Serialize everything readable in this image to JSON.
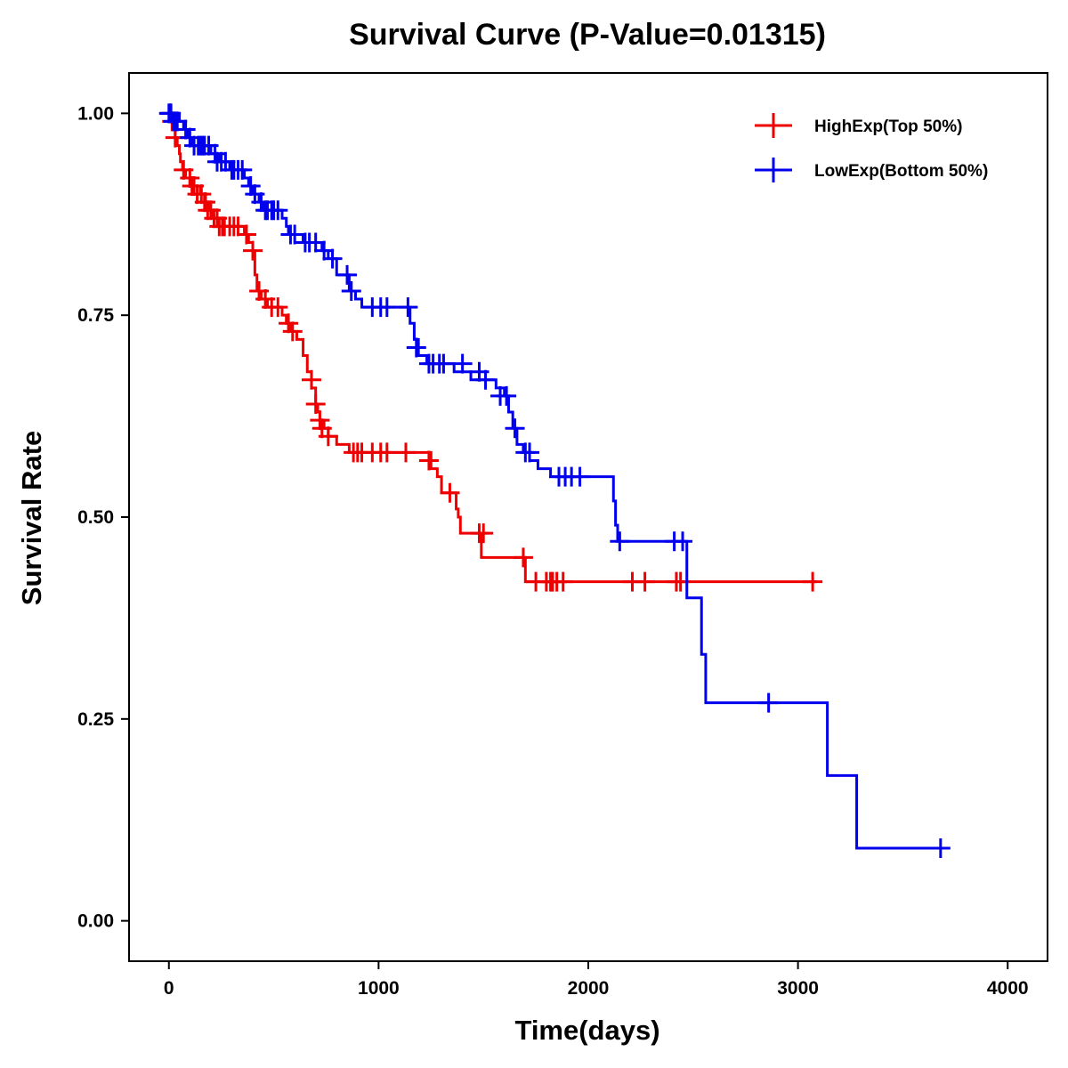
{
  "chart_data": {
    "type": "line",
    "title": "Survival Curve (P-Value=0.01315)",
    "xlabel": "Time(days)",
    "ylabel": "Survival Rate",
    "xlim": [
      -190,
      4190
    ],
    "ylim": [
      -0.05,
      1.05
    ],
    "xticks": [
      0,
      1000,
      2000,
      3000,
      4000
    ],
    "xtick_labels": [
      "0",
      "1000",
      "2000",
      "3000",
      "4000"
    ],
    "yticks": [
      0,
      0.25,
      0.5,
      0.75,
      1.0
    ],
    "ytick_labels": [
      "0.00",
      "0.25",
      "0.50",
      "0.75",
      "1.00"
    ],
    "grid": false,
    "legend_position": "top-right",
    "series": [
      {
        "name": "HighExp(Top 50%)",
        "color": "#ee0000",
        "steps": [
          [
            0,
            1.0
          ],
          [
            10,
            0.99
          ],
          [
            20,
            0.98
          ],
          [
            30,
            0.97
          ],
          [
            40,
            0.96
          ],
          [
            50,
            0.95
          ],
          [
            55,
            0.94
          ],
          [
            65,
            0.93
          ],
          [
            80,
            0.92
          ],
          [
            100,
            0.91
          ],
          [
            150,
            0.9
          ],
          [
            170,
            0.89
          ],
          [
            190,
            0.88
          ],
          [
            210,
            0.87
          ],
          [
            260,
            0.86
          ],
          [
            360,
            0.85
          ],
          [
            380,
            0.84
          ],
          [
            400,
            0.83
          ],
          [
            410,
            0.8
          ],
          [
            420,
            0.78
          ],
          [
            440,
            0.77
          ],
          [
            470,
            0.76
          ],
          [
            540,
            0.75
          ],
          [
            560,
            0.74
          ],
          [
            580,
            0.73
          ],
          [
            610,
            0.72
          ],
          [
            640,
            0.7
          ],
          [
            660,
            0.68
          ],
          [
            680,
            0.66
          ],
          [
            700,
            0.64
          ],
          [
            710,
            0.63
          ],
          [
            720,
            0.62
          ],
          [
            740,
            0.61
          ],
          [
            760,
            0.6
          ],
          [
            800,
            0.59
          ],
          [
            860,
            0.58
          ],
          [
            1250,
            0.56
          ],
          [
            1280,
            0.55
          ],
          [
            1300,
            0.53
          ],
          [
            1370,
            0.51
          ],
          [
            1380,
            0.5
          ],
          [
            1390,
            0.48
          ],
          [
            1490,
            0.45
          ],
          [
            1700,
            0.42
          ]
        ],
        "end": 3090,
        "censored": [
          [
            5,
            1.0
          ],
          [
            15,
            0.99
          ],
          [
            30,
            0.97
          ],
          [
            70,
            0.93
          ],
          [
            100,
            0.92
          ],
          [
            110,
            0.91
          ],
          [
            120,
            0.91
          ],
          [
            135,
            0.9
          ],
          [
            155,
            0.9
          ],
          [
            170,
            0.89
          ],
          [
            175,
            0.89
          ],
          [
            185,
            0.88
          ],
          [
            200,
            0.88
          ],
          [
            215,
            0.87
          ],
          [
            230,
            0.87
          ],
          [
            240,
            0.86
          ],
          [
            255,
            0.86
          ],
          [
            265,
            0.86
          ],
          [
            290,
            0.86
          ],
          [
            310,
            0.86
          ],
          [
            330,
            0.86
          ],
          [
            370,
            0.85
          ],
          [
            400,
            0.83
          ],
          [
            430,
            0.78
          ],
          [
            460,
            0.77
          ],
          [
            490,
            0.76
          ],
          [
            520,
            0.76
          ],
          [
            570,
            0.74
          ],
          [
            590,
            0.73
          ],
          [
            680,
            0.67
          ],
          [
            700,
            0.64
          ],
          [
            720,
            0.62
          ],
          [
            730,
            0.61
          ],
          [
            760,
            0.6
          ],
          [
            880,
            0.58
          ],
          [
            900,
            0.58
          ],
          [
            920,
            0.58
          ],
          [
            970,
            0.58
          ],
          [
            1010,
            0.58
          ],
          [
            1040,
            0.58
          ],
          [
            1130,
            0.58
          ],
          [
            1240,
            0.57
          ],
          [
            1340,
            0.53
          ],
          [
            1480,
            0.48
          ],
          [
            1500,
            0.48
          ],
          [
            1690,
            0.45
          ],
          [
            1750,
            0.42
          ],
          [
            1800,
            0.42
          ],
          [
            1820,
            0.42
          ],
          [
            1830,
            0.42
          ],
          [
            1850,
            0.42
          ],
          [
            1880,
            0.42
          ],
          [
            2210,
            0.42
          ],
          [
            2270,
            0.42
          ],
          [
            2420,
            0.42
          ],
          [
            2440,
            0.42
          ],
          [
            3070,
            0.42
          ]
        ]
      },
      {
        "name": "LowExp(Bottom 50%)",
        "color": "#0000ee",
        "steps": [
          [
            0,
            1.0
          ],
          [
            50,
            0.99
          ],
          [
            70,
            0.98
          ],
          [
            90,
            0.97
          ],
          [
            110,
            0.96
          ],
          [
            200,
            0.95
          ],
          [
            240,
            0.94
          ],
          [
            290,
            0.93
          ],
          [
            360,
            0.92
          ],
          [
            380,
            0.91
          ],
          [
            400,
            0.9
          ],
          [
            430,
            0.89
          ],
          [
            450,
            0.88
          ],
          [
            540,
            0.87
          ],
          [
            560,
            0.86
          ],
          [
            570,
            0.85
          ],
          [
            640,
            0.84
          ],
          [
            730,
            0.83
          ],
          [
            760,
            0.82
          ],
          [
            800,
            0.8
          ],
          [
            860,
            0.78
          ],
          [
            890,
            0.77
          ],
          [
            920,
            0.76
          ],
          [
            1150,
            0.74
          ],
          [
            1170,
            0.72
          ],
          [
            1190,
            0.7
          ],
          [
            1230,
            0.69
          ],
          [
            1360,
            0.68
          ],
          [
            1440,
            0.67
          ],
          [
            1560,
            0.66
          ],
          [
            1600,
            0.65
          ],
          [
            1620,
            0.63
          ],
          [
            1640,
            0.61
          ],
          [
            1660,
            0.59
          ],
          [
            1690,
            0.58
          ],
          [
            1720,
            0.57
          ],
          [
            1760,
            0.56
          ],
          [
            1820,
            0.55
          ],
          [
            2120,
            0.52
          ],
          [
            2130,
            0.49
          ],
          [
            2140,
            0.47
          ],
          [
            2470,
            0.4
          ],
          [
            2540,
            0.33
          ],
          [
            2560,
            0.27
          ],
          [
            3140,
            0.18
          ],
          [
            3280,
            0.09
          ]
        ],
        "end": 3700,
        "censored": [
          [
            0,
            1.0
          ],
          [
            5,
            1.0
          ],
          [
            10,
            1.0
          ],
          [
            20,
            0.99
          ],
          [
            30,
            0.99
          ],
          [
            40,
            0.99
          ],
          [
            80,
            0.98
          ],
          [
            100,
            0.97
          ],
          [
            120,
            0.96
          ],
          [
            140,
            0.96
          ],
          [
            150,
            0.96
          ],
          [
            160,
            0.96
          ],
          [
            170,
            0.96
          ],
          [
            190,
            0.96
          ],
          [
            220,
            0.95
          ],
          [
            230,
            0.94
          ],
          [
            250,
            0.94
          ],
          [
            270,
            0.94
          ],
          [
            300,
            0.93
          ],
          [
            310,
            0.93
          ],
          [
            330,
            0.93
          ],
          [
            350,
            0.93
          ],
          [
            390,
            0.91
          ],
          [
            410,
            0.9
          ],
          [
            440,
            0.89
          ],
          [
            460,
            0.88
          ],
          [
            470,
            0.88
          ],
          [
            490,
            0.88
          ],
          [
            500,
            0.88
          ],
          [
            520,
            0.88
          ],
          [
            580,
            0.85
          ],
          [
            600,
            0.85
          ],
          [
            650,
            0.84
          ],
          [
            670,
            0.84
          ],
          [
            700,
            0.84
          ],
          [
            740,
            0.83
          ],
          [
            780,
            0.82
          ],
          [
            850,
            0.8
          ],
          [
            870,
            0.78
          ],
          [
            970,
            0.76
          ],
          [
            1010,
            0.76
          ],
          [
            1040,
            0.76
          ],
          [
            1140,
            0.76
          ],
          [
            1180,
            0.71
          ],
          [
            1240,
            0.69
          ],
          [
            1260,
            0.69
          ],
          [
            1290,
            0.69
          ],
          [
            1310,
            0.69
          ],
          [
            1400,
            0.69
          ],
          [
            1480,
            0.68
          ],
          [
            1510,
            0.67
          ],
          [
            1580,
            0.65
          ],
          [
            1610,
            0.65
          ],
          [
            1650,
            0.61
          ],
          [
            1700,
            0.58
          ],
          [
            1720,
            0.58
          ],
          [
            1860,
            0.55
          ],
          [
            1890,
            0.55
          ],
          [
            1920,
            0.55
          ],
          [
            1960,
            0.55
          ],
          [
            2150,
            0.47
          ],
          [
            2410,
            0.47
          ],
          [
            2450,
            0.47
          ],
          [
            2860,
            0.27
          ],
          [
            3680,
            0.09
          ]
        ]
      }
    ]
  }
}
